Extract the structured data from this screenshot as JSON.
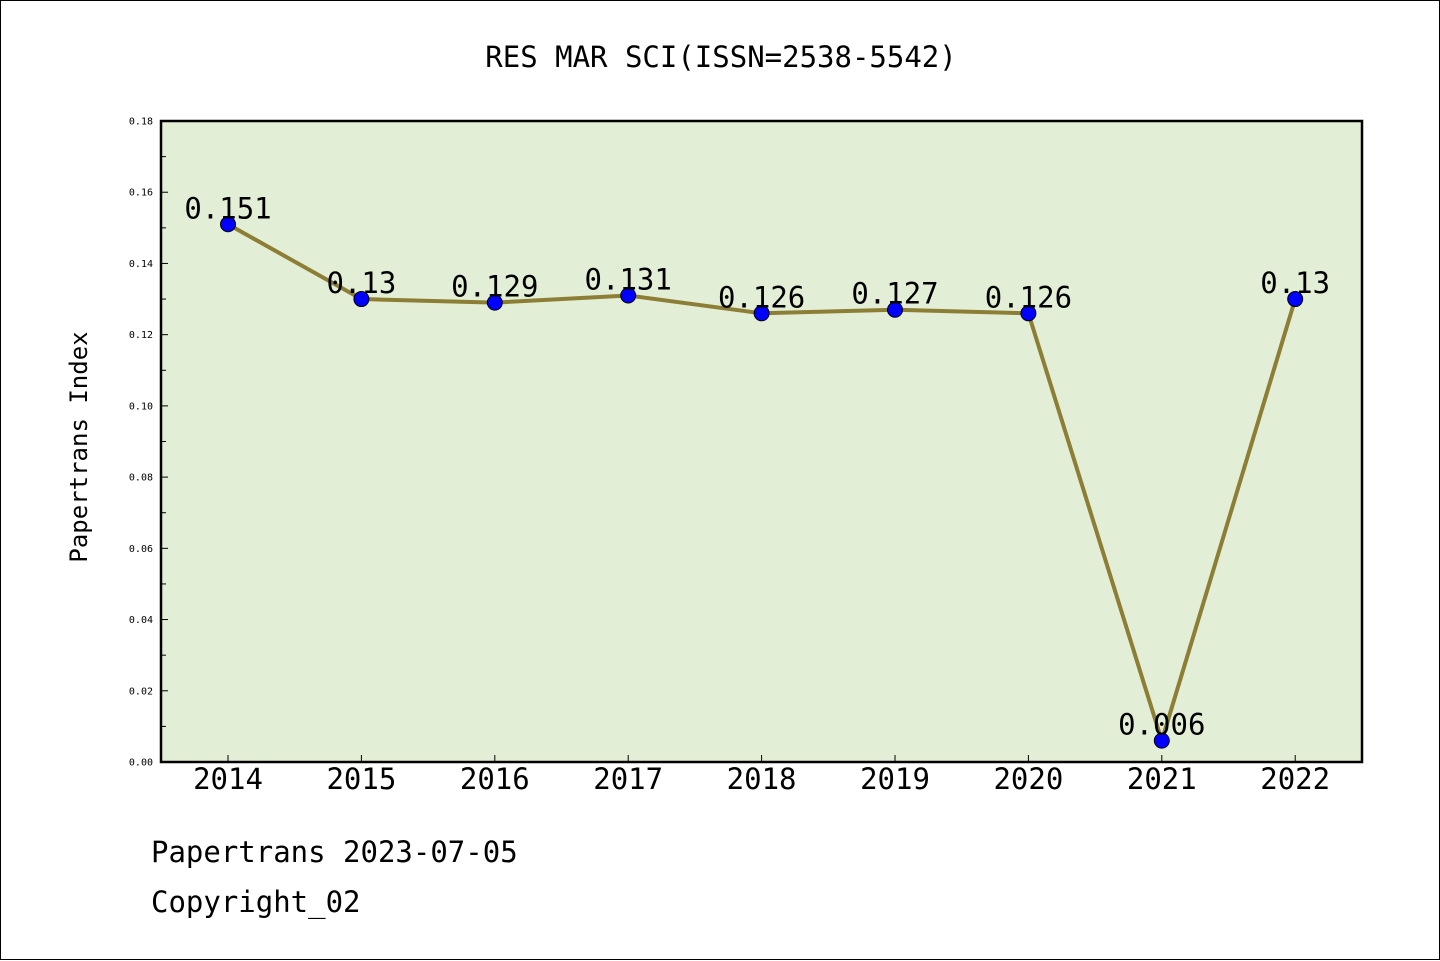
{
  "chart_data": {
    "type": "line",
    "title": "RES MAR SCI(ISSN=2538-5542)",
    "xlabel": "",
    "ylabel": "Papertrans Index",
    "categories": [
      "2014",
      "2015",
      "2016",
      "2017",
      "2018",
      "2019",
      "2020",
      "2021",
      "2022"
    ],
    "values": [
      0.151,
      0.13,
      0.129,
      0.131,
      0.126,
      0.127,
      0.126,
      0.006,
      0.13
    ],
    "data_labels": [
      "0.151",
      "0.13",
      "0.129",
      "0.131",
      "0.126",
      "0.127",
      "0.126",
      "0.006",
      "0.13"
    ],
    "ylim": [
      0,
      0.18
    ],
    "yticks": [
      "0.00",
      "0.02",
      "0.04",
      "0.06",
      "0.08",
      "0.10",
      "0.12",
      "0.14",
      "0.16",
      "0.18"
    ],
    "ytick_values": [
      0,
      0.02,
      0.04,
      0.06,
      0.08,
      0.1,
      0.12,
      0.14,
      0.16,
      0.18
    ],
    "grid": false,
    "colors": {
      "plot_background": "#e2efd6",
      "line": "#8c7e35",
      "marker": "#0000ff"
    }
  },
  "footer": {
    "line1": "Papertrans 2023-07-05",
    "line2": "Copyright_02"
  }
}
